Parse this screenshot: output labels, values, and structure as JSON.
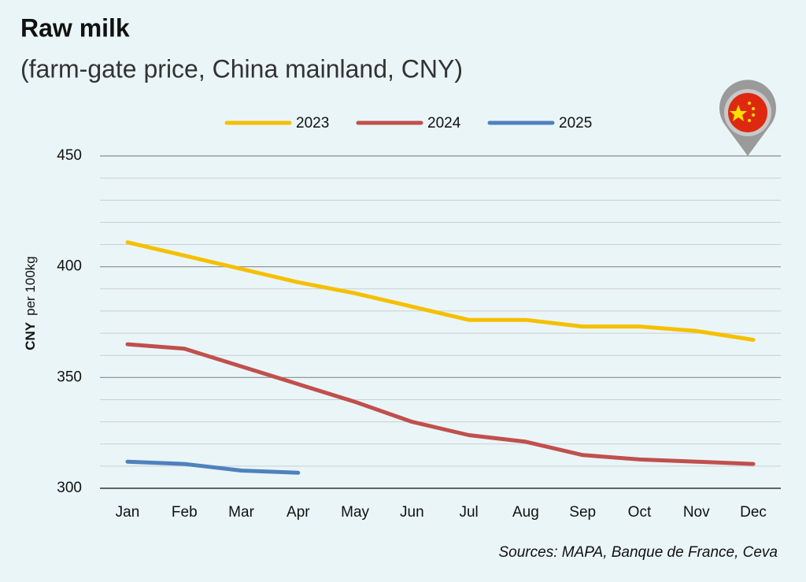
{
  "chart_data": {
    "type": "line",
    "title": "Raw milk",
    "subtitle": "(farm-gate price, China mainland, CNY)",
    "ylabel": "CNY",
    "ylabel_unit": "per 100kg",
    "source": "Sources: MAPA, Banque de France, Ceva",
    "categories": [
      "Jan",
      "Feb",
      "Mar",
      "Apr",
      "May",
      "Jun",
      "Jul",
      "Aug",
      "Sep",
      "Oct",
      "Nov",
      "Dec"
    ],
    "series": [
      {
        "name": "2023",
        "color": "#f5c000",
        "values": [
          411,
          405,
          399,
          393,
          388,
          382,
          376,
          376,
          373,
          373,
          371,
          367
        ]
      },
      {
        "name": "2024",
        "color": "#c0504d",
        "values": [
          365,
          363,
          355,
          347,
          339,
          330,
          324,
          321,
          315,
          313,
          312,
          311
        ]
      },
      {
        "name": "2025",
        "color": "#4f81bd",
        "values": [
          312,
          311,
          308,
          307,
          null,
          null,
          null,
          null,
          null,
          null,
          null,
          null
        ]
      }
    ],
    "ylim": [
      300,
      450
    ],
    "yticks": [
      300,
      350,
      400,
      450
    ],
    "yminorticks": [
      310,
      320,
      330,
      340,
      360,
      370,
      380,
      390,
      410,
      420,
      430,
      440
    ],
    "grid": true,
    "legend": "top"
  }
}
